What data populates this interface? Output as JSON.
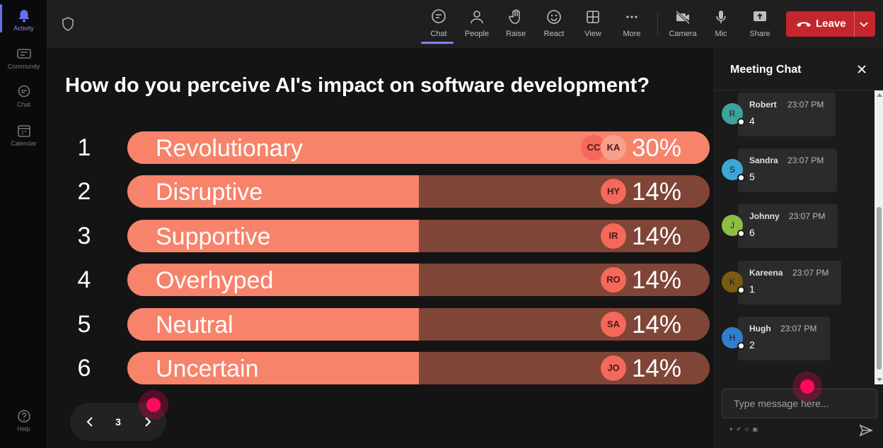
{
  "rail": {
    "items": [
      {
        "label": "Activity",
        "icon": "bell-icon"
      },
      {
        "label": "Community",
        "icon": "community-icon"
      },
      {
        "label": "Chat",
        "icon": "chat-icon"
      },
      {
        "label": "Calendar",
        "icon": "calendar-icon"
      }
    ],
    "help": {
      "label": "Help",
      "icon": "help-icon"
    }
  },
  "toolbar": {
    "buttons": [
      {
        "label": "Chat",
        "icon": "chat-icon",
        "active": true
      },
      {
        "label": "People",
        "icon": "people-icon"
      },
      {
        "label": "Raise",
        "icon": "raise-hand-icon"
      },
      {
        "label": "React",
        "icon": "react-icon"
      },
      {
        "label": "View",
        "icon": "view-grid-icon"
      },
      {
        "label": "More",
        "icon": "more-icon"
      },
      {
        "label": "Camera",
        "icon": "camera-off-icon"
      },
      {
        "label": "Mic",
        "icon": "mic-icon"
      },
      {
        "label": "Share",
        "icon": "share-icon"
      }
    ],
    "leave_label": "Leave"
  },
  "poll": {
    "question": "How do you perceive AI's impact on software development?",
    "options": [
      {
        "num": "1",
        "label": "Revolutionary",
        "pct": "30%",
        "fill": 1.0,
        "avatars": [
          "CC",
          "KA"
        ]
      },
      {
        "num": "2",
        "label": "Disruptive",
        "pct": "14%",
        "fill": 0.5,
        "avatars": [
          "HY"
        ]
      },
      {
        "num": "3",
        "label": "Supportive",
        "pct": "14%",
        "fill": 0.5,
        "avatars": [
          "IR"
        ]
      },
      {
        "num": "4",
        "label": "Overhyped",
        "pct": "14%",
        "fill": 0.5,
        "avatars": [
          "RO"
        ]
      },
      {
        "num": "5",
        "label": "Neutral",
        "pct": "14%",
        "fill": 0.5,
        "avatars": [
          "SA"
        ]
      },
      {
        "num": "6",
        "label": "Uncertain",
        "pct": "14%",
        "fill": 0.5,
        "avatars": [
          "JO"
        ]
      }
    ],
    "page": "3"
  },
  "chat": {
    "title": "Meeting Chat",
    "messages": [
      {
        "initial": "R",
        "name": "Robert",
        "time": "23:07 PM",
        "text": "4",
        "color": "#3aa39a"
      },
      {
        "initial": "S",
        "name": "Sandra",
        "time": "23:07 PM",
        "text": "5",
        "color": "#3ba7d6"
      },
      {
        "initial": "J",
        "name": "Johnny",
        "time": "23:07 PM",
        "text": "6",
        "color": "#8cbf3f"
      },
      {
        "initial": "K",
        "name": "Kareena",
        "time": "23:07 PM",
        "text": "1",
        "color": "#7a5b14"
      },
      {
        "initial": "H",
        "name": "Hugh",
        "time": "23:07 PM",
        "text": "2",
        "color": "#2f7fd0"
      }
    ],
    "input_placeholder": "Type message here..."
  }
}
